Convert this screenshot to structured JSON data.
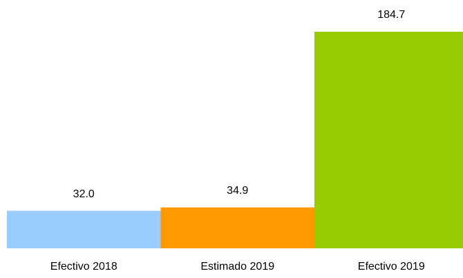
{
  "chart_data": {
    "type": "bar",
    "categories": [
      "Efectivo 2018",
      "Estimado 2019",
      "Efectivo 2019"
    ],
    "values": [
      32.0,
      34.9,
      184.7
    ],
    "value_labels": [
      "32.0",
      "34.9",
      "184.7"
    ],
    "colors": [
      "#99ccff",
      "#ff9900",
      "#99cc00"
    ]
  }
}
